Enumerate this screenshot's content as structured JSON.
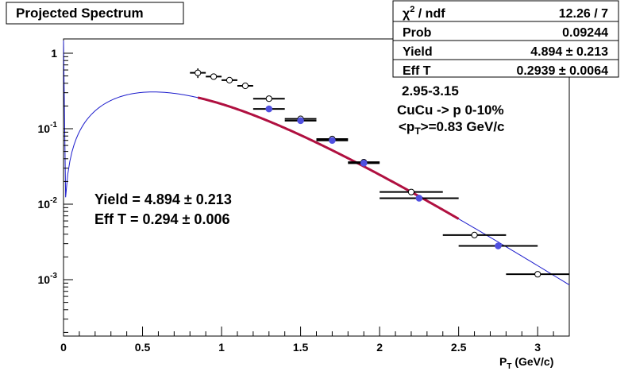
{
  "chart_data": {
    "type": "scatter",
    "title": "Projected Spectrum",
    "xlabel": {
      "main": "P",
      "sub": "T",
      "rest": " (GeV/c)"
    },
    "ylabel": "",
    "yscale": "log",
    "xlim": [
      0,
      3.2
    ],
    "ylim": [
      0.00015,
      1.7
    ],
    "x_ticks": [
      "0",
      "0.5",
      "1",
      "1.5",
      "2",
      "2.5",
      "3"
    ],
    "y_ticks": [
      {
        "value": 1,
        "base": "1",
        "exp": ""
      },
      {
        "value": 0.1,
        "base": "10",
        "exp": "-1"
      },
      {
        "value": 0.01,
        "base": "10",
        "exp": "-2"
      },
      {
        "value": 0.001,
        "base": "10",
        "exp": "-3"
      }
    ],
    "stats_box": [
      {
        "label_main": "χ",
        "label_sup": "2",
        "label_rest": " / ndf",
        "value": "12.26 / 7"
      },
      {
        "label_main": "Prob",
        "label_sup": "",
        "label_rest": "",
        "value": "0.09244"
      },
      {
        "label_main": "Yield",
        "label_sup": "",
        "label_rest": "",
        "value": "4.894 ± 0.213"
      },
      {
        "label_main": "Eff T",
        "label_sup": "",
        "label_rest": "",
        "value": "0.2939 ± 0.0064"
      }
    ],
    "annotations": {
      "info_line1": "2.95-3.15",
      "info_line2": "CuCu -> p  0-10%",
      "info_line3_pre": "<p",
      "info_line3_sub": "T",
      "info_line3_post": ">=0.83 GeV/c",
      "yield_text": "Yield = 4.894 ± 0.213",
      "efft_text": "Eff T = 0.294 ± 0.006"
    },
    "fit": {
      "curve": {
        "color": "#1c1ccc",
        "x_range": [
          0,
          3.2
        ]
      },
      "fit_range_curve": {
        "color": "#b01040",
        "x_range": [
          0.85,
          2.5
        ]
      }
    },
    "series": [
      {
        "marker": "open-circle",
        "color": "#000000",
        "points": [
          {
            "x": 0.85,
            "y": 0.55,
            "xerr": 0.05,
            "yerr": 0.08
          },
          {
            "x": 0.95,
            "y": 0.49,
            "xerr": 0.05,
            "yerr": 0.04
          },
          {
            "x": 1.05,
            "y": 0.44,
            "xerr": 0.05,
            "yerr": 0.03
          },
          {
            "x": 1.15,
            "y": 0.37,
            "xerr": 0.05,
            "yerr": 0.03
          },
          {
            "x": 1.3,
            "y": 0.25,
            "xerr": 0.1,
            "yerr": 0.02
          },
          {
            "x": 1.5,
            "y": 0.135,
            "xerr": 0.1,
            "yerr": 0.008
          },
          {
            "x": 1.7,
            "y": 0.073,
            "xerr": 0.1,
            "yerr": 0.004
          },
          {
            "x": 1.9,
            "y": 0.036,
            "xerr": 0.1,
            "yerr": 0.002
          },
          {
            "x": 2.2,
            "y": 0.0145,
            "xerr": 0.2,
            "yerr": 0.0008
          },
          {
            "x": 2.6,
            "y": 0.0039,
            "xerr": 0.2,
            "yerr": 0.0002
          },
          {
            "x": 3.0,
            "y": 0.00118,
            "xerr": 0.2,
            "yerr": 7e-05
          }
        ]
      },
      {
        "marker": "filled-circle",
        "color": "#5050e0",
        "points": [
          {
            "x": 1.3,
            "y": 0.183,
            "xerr": 0.1,
            "yerr": 0.01
          },
          {
            "x": 1.5,
            "y": 0.128,
            "xerr": 0.1,
            "yerr": 0.007
          },
          {
            "x": 1.7,
            "y": 0.07,
            "xerr": 0.1,
            "yerr": 0.004
          },
          {
            "x": 1.9,
            "y": 0.035,
            "xerr": 0.1,
            "yerr": 0.002
          },
          {
            "x": 2.25,
            "y": 0.012,
            "xerr": 0.25,
            "yerr": 0.0007
          },
          {
            "x": 2.75,
            "y": 0.0028,
            "xerr": 0.25,
            "yerr": 0.00016
          }
        ]
      }
    ]
  }
}
